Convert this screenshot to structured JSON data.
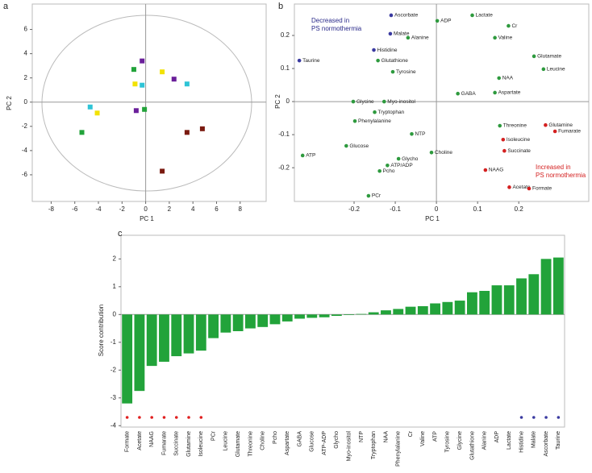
{
  "chart_data": [
    {
      "type": "scatter",
      "panel": "a",
      "marker": "square",
      "xlabel": "PC 1",
      "ylabel": "PC 2",
      "xlim": [
        -9.6,
        10.2
      ],
      "ylim": [
        -8.2,
        8.1
      ],
      "xticks": [
        -8,
        -6,
        -4,
        -2,
        0,
        2,
        4,
        6,
        8
      ],
      "yticks": [
        -6,
        -4,
        -2,
        0,
        2,
        4,
        6
      ],
      "zero_lines": true,
      "series": [
        {
          "color": "#6a1f9a",
          "x": [
            -0.3,
            2.4,
            -0.8
          ],
          "values": [
            3.4,
            1.9,
            -0.7
          ]
        },
        {
          "color": "#22a33a",
          "x": [
            -1.0,
            -0.1,
            -5.4
          ],
          "values": [
            2.7,
            -0.6,
            -2.5
          ]
        },
        {
          "color": "#f2e205",
          "x": [
            1.4,
            -0.9,
            -4.1
          ],
          "values": [
            2.5,
            1.5,
            -0.9
          ]
        },
        {
          "color": "#2ec4d6",
          "x": [
            -0.3,
            3.5,
            -4.7
          ],
          "values": [
            1.4,
            1.5,
            -0.4
          ]
        },
        {
          "color": "#7a1a10",
          "x": [
            3.5,
            4.8,
            1.4
          ],
          "values": [
            -2.5,
            -2.2,
            -5.7
          ]
        }
      ]
    },
    {
      "type": "scatter",
      "panel": "b",
      "marker": "circle",
      "xlabel": "PC 1",
      "ylabel": "PC 2",
      "xlim": [
        -0.345,
        0.37
      ],
      "ylim": [
        -0.302,
        0.295
      ],
      "xticks": [
        -0.2,
        -0.1,
        0,
        0.1,
        0.2
      ],
      "yticks": [
        -0.2,
        -0.1,
        0,
        0.1,
        0.2
      ],
      "zero_lines": true,
      "annotations": [
        {
          "lines": [
            "Decreased in",
            "PS normothermia"
          ],
          "color": "#2a2a8a"
        },
        {
          "lines": [
            "Increased in",
            "PS normothermia"
          ],
          "color": "#d42020"
        }
      ],
      "series": [
        {
          "color": "#3a3aa0",
          "labels": [
            "Ascorbate",
            "Malate",
            "Histidine",
            "Taurine"
          ],
          "x": [
            -0.11,
            -0.112,
            -0.152,
            -0.333
          ],
          "values": [
            0.261,
            0.205,
            0.156,
            0.124
          ]
        },
        {
          "color": "#2e9a3e",
          "labels": [
            "ADP",
            "Lactate",
            "Cr",
            "Valine",
            "Alanine",
            "Glutathione",
            "Tyrosine",
            "Glutamate",
            "Leucine",
            "NAA",
            "Aspartate",
            "GABA",
            "Glycine",
            "Myo-inositol",
            "Tryptophan",
            "Phenylalanine",
            "NTP",
            "Threonine",
            "Glucose",
            "ATP",
            "Choline",
            "Glycho",
            "ATP/ADP",
            "Pcho",
            "PCr"
          ],
          "x": [
            0.002,
            0.087,
            0.175,
            0.142,
            -0.069,
            -0.142,
            -0.106,
            0.237,
            0.26,
            0.152,
            0.142,
            0.052,
            -0.202,
            -0.127,
            -0.15,
            -0.198,
            -0.06,
            0.154,
            -0.219,
            -0.325,
            -0.012,
            -0.092,
            -0.119,
            -0.138,
            -0.165
          ],
          "values": [
            0.244,
            0.261,
            0.229,
            0.193,
            0.193,
            0.124,
            0.09,
            0.137,
            0.098,
            0.071,
            0.027,
            0.024,
            0.0,
            0.0,
            -0.032,
            -0.059,
            -0.098,
            -0.073,
            -0.134,
            -0.163,
            -0.154,
            -0.173,
            -0.193,
            -0.21,
            -0.285
          ]
        },
        {
          "color": "#d42020",
          "labels": [
            "Glutamine",
            "Fumarate",
            "Isoleucine",
            "Succinate",
            "NAAG",
            "Acetate",
            "Formate"
          ],
          "x": [
            0.265,
            0.288,
            0.162,
            0.165,
            0.119,
            0.177,
            0.225
          ],
          "values": [
            -0.071,
            -0.09,
            -0.115,
            -0.149,
            -0.207,
            -0.259,
            -0.263
          ]
        }
      ]
    },
    {
      "type": "bar",
      "panel": "c",
      "ylabel": "Score contribution",
      "color": "#22a33a",
      "ylim": [
        -4.05,
        2.85
      ],
      "yticks": [
        -4,
        -3,
        -2,
        -1,
        0,
        1,
        2
      ],
      "categories": [
        "Formate",
        "Acetate",
        "NAAG",
        "Fumarate",
        "Succinate",
        "Glutamine",
        "Isoleucine",
        "PCr",
        "Leucine",
        "Glutamate",
        "Threonine",
        "Choline",
        "Pcho",
        "Aspartate",
        "GABA",
        "Glucose",
        "ATP-ADP",
        "Glycho",
        "Myo-inositol",
        "NTP",
        "Tryptophan",
        "NAA",
        "Phenylalanine",
        "Cr",
        "Valine",
        "ATP",
        "Tyrosine",
        "Glycine",
        "Glutathione",
        "Alanine",
        "ADP",
        "Lactate",
        "Histidine",
        "Malate",
        "Ascorbate",
        "Taurine"
      ],
      "values": [
        -3.2,
        -2.75,
        -1.85,
        -1.7,
        -1.5,
        -1.4,
        -1.3,
        -0.85,
        -0.65,
        -0.6,
        -0.5,
        -0.45,
        -0.35,
        -0.25,
        -0.15,
        -0.12,
        -0.1,
        -0.05,
        -0.02,
        0.02,
        0.08,
        0.15,
        0.2,
        0.28,
        0.3,
        0.4,
        0.45,
        0.5,
        0.8,
        0.85,
        1.05,
        1.05,
        1.3,
        1.45,
        2.0,
        2.05
      ],
      "marker_colors": [
        "#e02020",
        "#e02020",
        "#e02020",
        "#e02020",
        "#e02020",
        "#e02020",
        "#e02020",
        null,
        null,
        null,
        null,
        null,
        null,
        null,
        null,
        null,
        null,
        null,
        null,
        null,
        null,
        null,
        null,
        null,
        null,
        null,
        null,
        null,
        null,
        null,
        null,
        null,
        "#3a3aa0",
        "#3a3aa0",
        "#3a3aa0",
        "#3a3aa0"
      ]
    }
  ]
}
